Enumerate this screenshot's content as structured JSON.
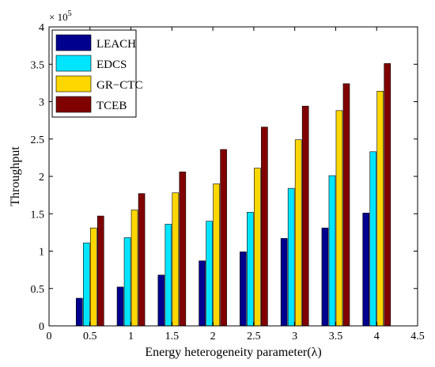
{
  "chart_data": {
    "type": "bar",
    "title": "",
    "xlabel": "Energy heterogeneity parameter(λ)",
    "ylabel": "Throughput",
    "exponent_label": "× 10",
    "exponent_power": "5",
    "categories": [
      "0.5",
      "1",
      "1.5",
      "2",
      "2.5",
      "3",
      "3.5",
      "4"
    ],
    "x": [
      0.5,
      1,
      1.5,
      2,
      2.5,
      3,
      3.5,
      4
    ],
    "xlim": [
      0,
      4.5
    ],
    "ylim": [
      0,
      4
    ],
    "xticks": [
      0,
      0.5,
      1,
      1.5,
      2,
      2.5,
      3,
      3.5,
      4,
      4.5
    ],
    "xtick_labels": [
      "0",
      "0.5",
      "1",
      "1.5",
      "2",
      "2.5",
      "3",
      "3.5",
      "4",
      "4.5"
    ],
    "yticks": [
      0,
      0.5,
      1,
      1.5,
      2,
      2.5,
      3,
      3.5,
      4
    ],
    "ytick_labels": [
      "0",
      "0.5",
      "1",
      "1.5",
      "2",
      "2.5",
      "3",
      "3.5",
      "4"
    ],
    "grid": false,
    "legend_position": "top-left",
    "series": [
      {
        "name": "LEACH",
        "color": "#00008F",
        "values": [
          0.37,
          0.52,
          0.68,
          0.87,
          0.99,
          1.17,
          1.31,
          1.51
        ]
      },
      {
        "name": "EDCS",
        "color": "#00E5FF",
        "values": [
          1.11,
          1.18,
          1.36,
          1.4,
          1.52,
          1.84,
          2.01,
          2.33
        ]
      },
      {
        "name": "GR−CTC",
        "color": "#FFD700",
        "values": [
          1.31,
          1.55,
          1.78,
          1.9,
          2.11,
          2.49,
          2.88,
          3.14
        ]
      },
      {
        "name": "TCEB",
        "color": "#800000",
        "values": [
          1.47,
          1.77,
          2.06,
          2.36,
          2.66,
          2.94,
          3.24,
          3.51
        ]
      }
    ]
  }
}
